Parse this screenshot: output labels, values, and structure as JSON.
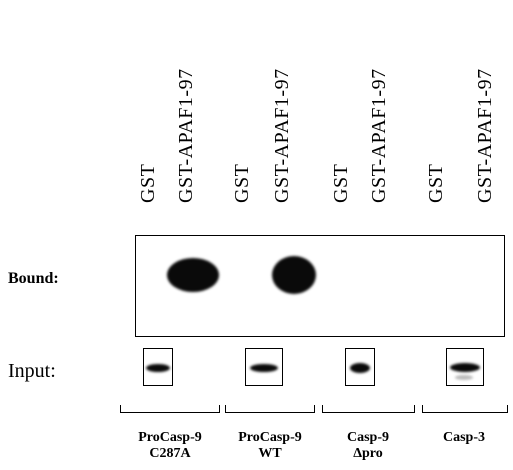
{
  "lanes": [
    {
      "label": "GST"
    },
    {
      "label": "GST-APAF1-97"
    },
    {
      "label": "GST"
    },
    {
      "label": "GST-APAF1-97"
    },
    {
      "label": "GST"
    },
    {
      "label": "GST-APAF1-97"
    },
    {
      "label": "GST"
    },
    {
      "label": "GST-APAF1-97"
    }
  ],
  "rows": {
    "bound_label": "Bound:",
    "input_label": "Input:"
  },
  "groups": [
    {
      "line1": "ProCasp-9",
      "line2": "C287A"
    },
    {
      "line1": "ProCasp-9",
      "line2": "WT"
    },
    {
      "line1": "Casp-9",
      "line2": "Δpro"
    },
    {
      "line1": "Casp-3",
      "line2": ""
    }
  ]
}
